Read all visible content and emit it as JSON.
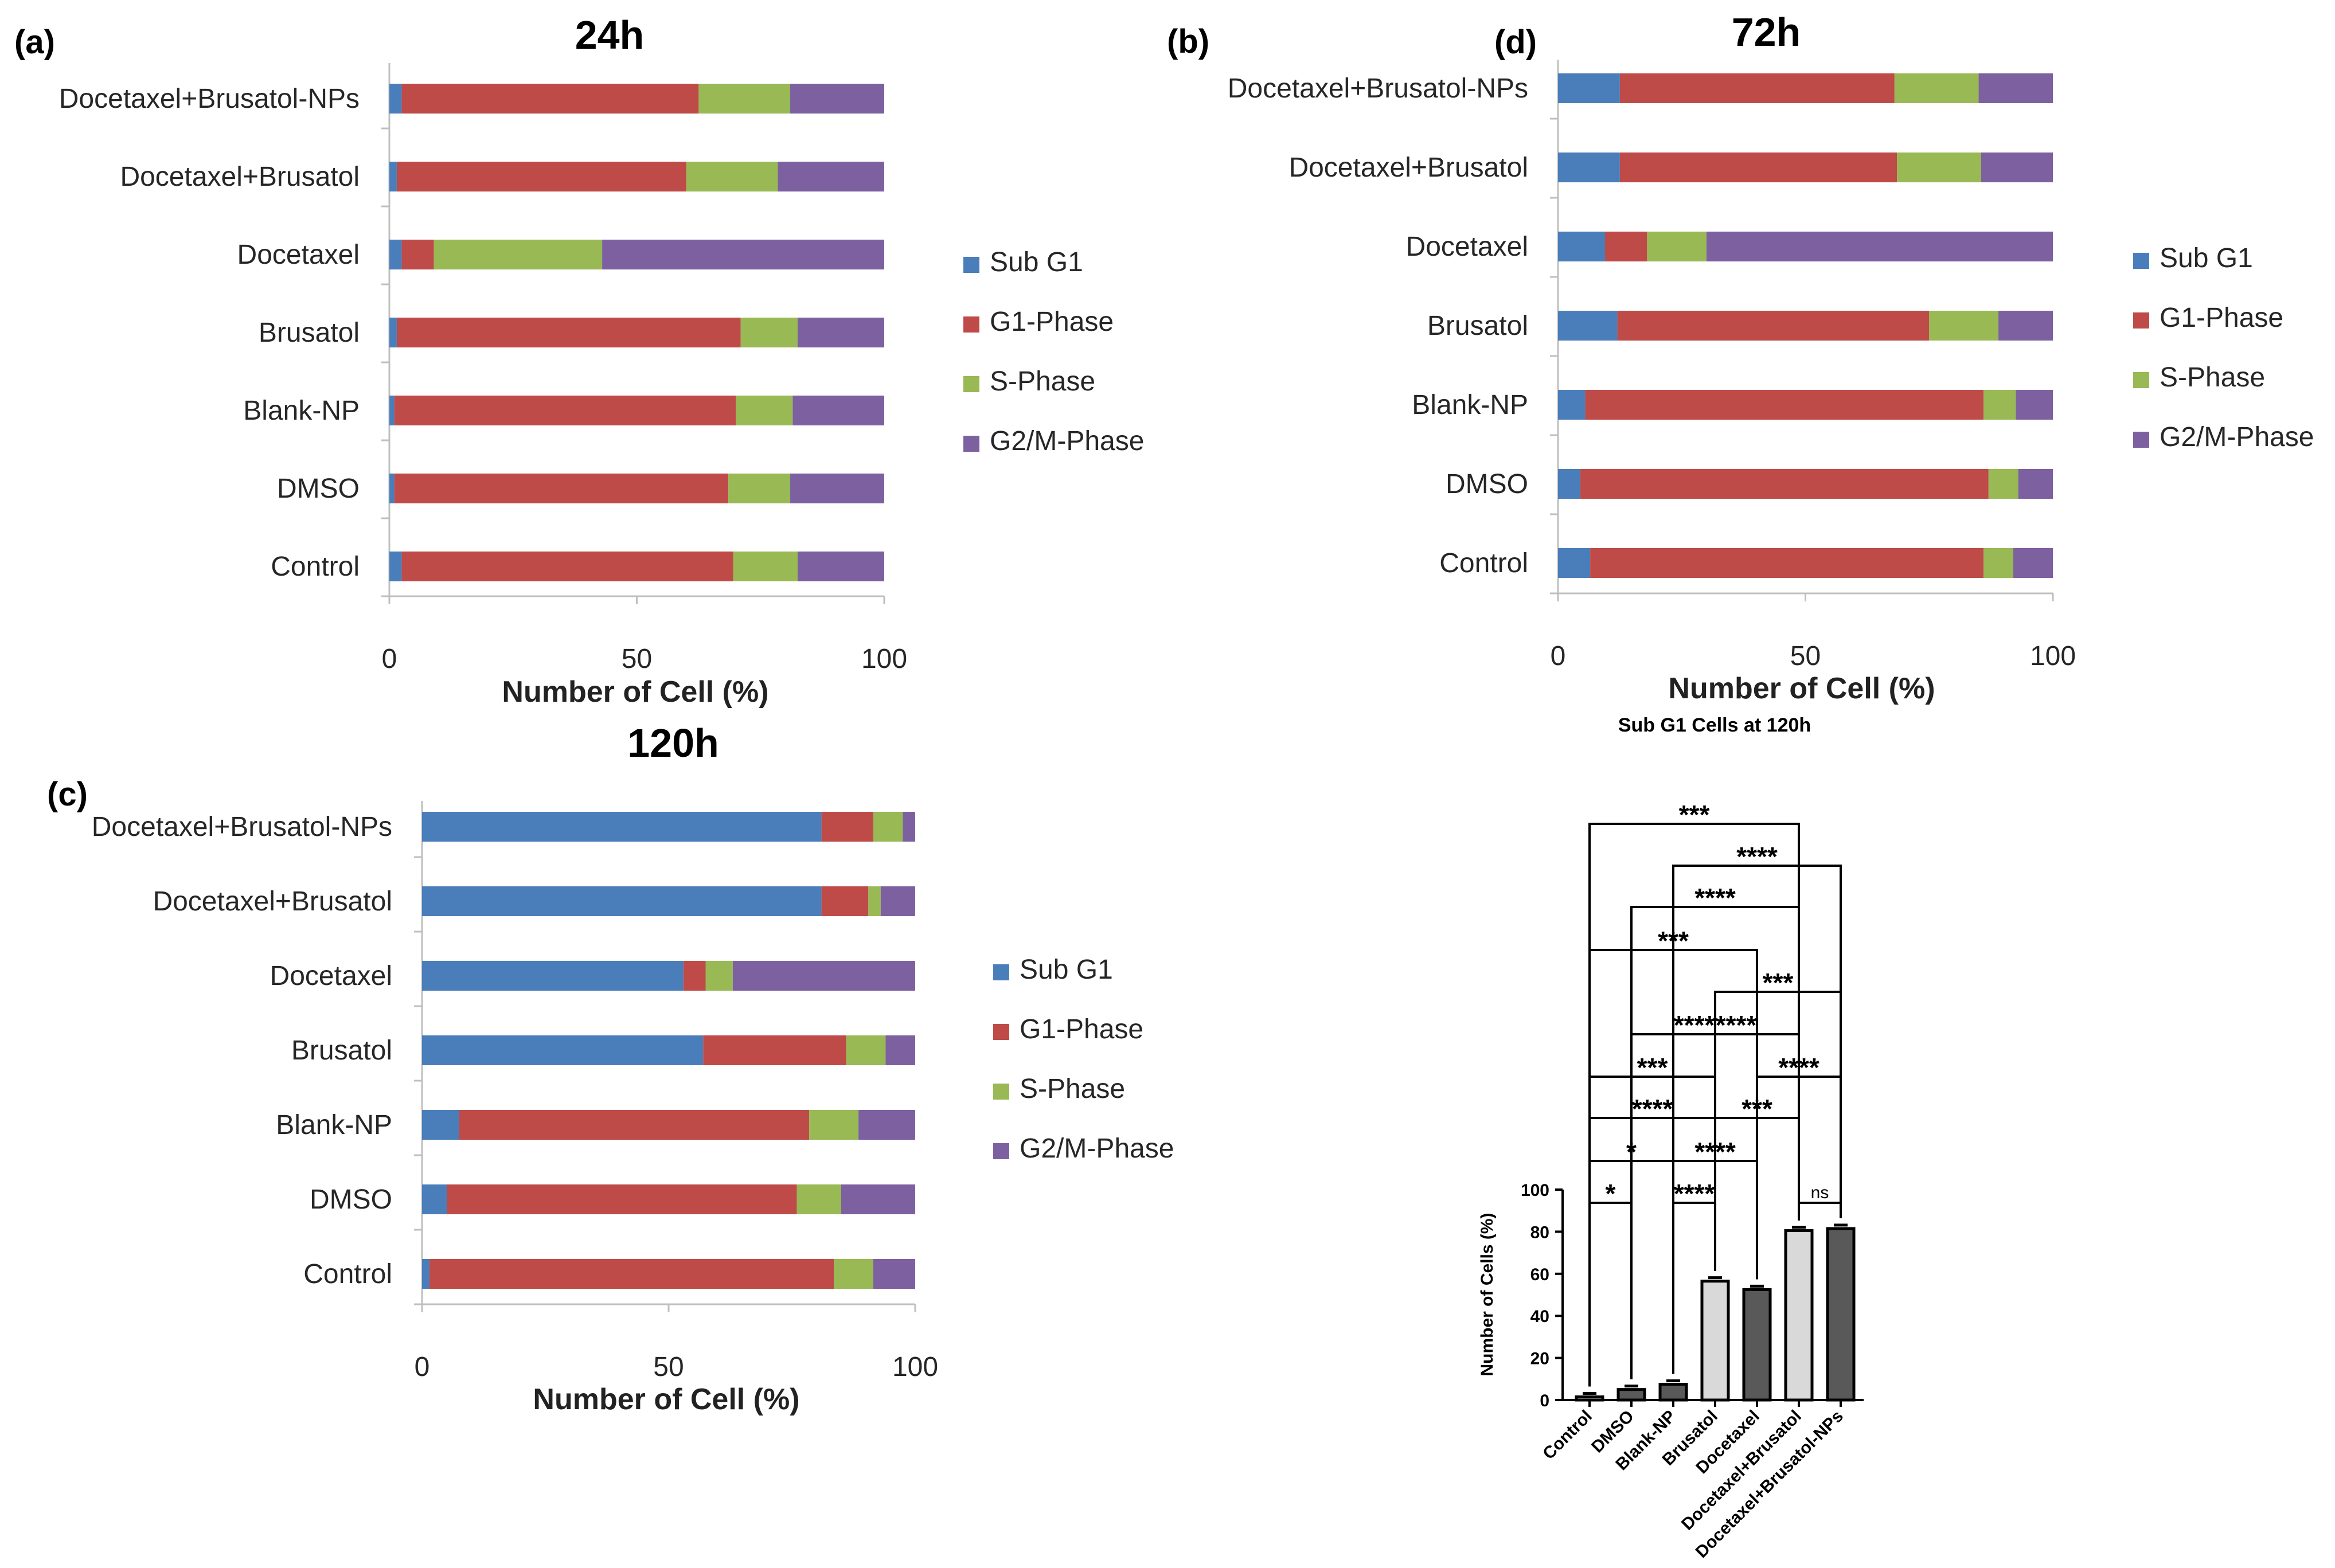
{
  "colors": {
    "sub_g1": "#4a7ebb",
    "g1": "#be4b48",
    "s": "#98b954",
    "g2m": "#7d60a0",
    "bar_light": "#d9d9d9",
    "bar_dark": "#595959"
  },
  "chart_data": [
    {
      "panel": "(a)",
      "type": "bar",
      "orientation": "horizontal",
      "stacked": true,
      "title": "24h",
      "xlabel": "Number of Cell (%)",
      "ylabel": "",
      "xlim": [
        0,
        100
      ],
      "xticks": [
        "0",
        "50",
        "100"
      ],
      "legend_position": "right",
      "categories": [
        "Control",
        "DMSO",
        "Blank-NP",
        "Brusatol",
        "Docetaxel",
        "Docetaxel+Brusatol",
        "Docetaxel+Brusatol-NPs"
      ],
      "series": [
        {
          "name": "Sub G1",
          "values": [
            2.5,
            1,
            1,
            1.5,
            2.5,
            1.5,
            2.5
          ]
        },
        {
          "name": "G1-Phase",
          "values": [
            67,
            67.5,
            69,
            69.5,
            6.5,
            58.5,
            60
          ]
        },
        {
          "name": "S-Phase",
          "values": [
            13,
            12.5,
            11.5,
            11.5,
            34,
            18.5,
            18.5
          ]
        },
        {
          "name": "G2/M-Phase",
          "values": [
            17.5,
            19,
            18.5,
            17.5,
            57,
            21.5,
            19
          ]
        }
      ]
    },
    {
      "panel": "(b)",
      "type": "bar",
      "orientation": "horizontal",
      "stacked": true,
      "title": "72h",
      "xlabel": "Number of Cell (%)",
      "ylabel": "",
      "xlim": [
        0,
        100
      ],
      "xticks": [
        "0",
        "50",
        "100"
      ],
      "legend_position": "right",
      "categories": [
        "Control",
        "DMSO",
        "Blank-NP",
        "Brusatol",
        "Docetaxel",
        "Docetaxel+Brusatol",
        "Docetaxel+Brusatol-NPs"
      ],
      "series": [
        {
          "name": "Sub G1",
          "values": [
            6.5,
            4.5,
            5.5,
            12,
            9.5,
            12.5,
            12.5
          ]
        },
        {
          "name": "G1-Phase",
          "values": [
            79.5,
            82.5,
            80.5,
            63,
            8.5,
            56,
            55.5
          ]
        },
        {
          "name": "S-Phase",
          "values": [
            6,
            6,
            6.5,
            14,
            12,
            17,
            17
          ]
        },
        {
          "name": "G2/M-Phase",
          "values": [
            8,
            7,
            7.5,
            11,
            70,
            14.5,
            15
          ]
        }
      ]
    },
    {
      "panel": "(c)",
      "type": "bar",
      "orientation": "horizontal",
      "stacked": true,
      "title": "120h",
      "xlabel": "Number of Cell (%)",
      "ylabel": "",
      "xlim": [
        0,
        100
      ],
      "xticks": [
        "0",
        "50",
        "100"
      ],
      "legend_position": "right",
      "categories": [
        "Control",
        "DMSO",
        "Blank-NP",
        "Brusatol",
        "Docetaxel",
        "Docetaxel+Brusatol",
        "Docetaxel+Brusatol-NPs"
      ],
      "series": [
        {
          "name": "Sub G1",
          "values": [
            1.5,
            5,
            7.5,
            57,
            53,
            81,
            81
          ]
        },
        {
          "name": "G1-Phase",
          "values": [
            82,
            71,
            71,
            29,
            4.5,
            9.5,
            10.5
          ]
        },
        {
          "name": "S-Phase",
          "values": [
            8,
            9,
            10,
            8,
            5.5,
            2.5,
            6
          ]
        },
        {
          "name": "G2/M-Phase",
          "values": [
            8.5,
            15,
            11.5,
            6,
            37,
            7,
            2.5
          ]
        }
      ]
    },
    {
      "panel": "(d)",
      "type": "bar",
      "orientation": "vertical",
      "title": "Sub G1 Cells at 120h",
      "xlabel": "",
      "ylabel": "Number of Cells (%)",
      "ylim": [
        0,
        100
      ],
      "yticks": [
        "0",
        "20",
        "40",
        "60",
        "80",
        "100"
      ],
      "categories": [
        "Control",
        "DMSO",
        "Blank-NP",
        "Brusatol",
        "Docetaxel",
        "Docetaxel+Brusatol",
        "Docetaxel+Brusatol-NPs"
      ],
      "values": [
        1.5,
        5,
        7.5,
        56.5,
        52.5,
        80.5,
        81.5
      ],
      "bar_shades": [
        "light",
        "dark",
        "dark",
        "light",
        "dark",
        "light",
        "dark"
      ],
      "comparisons": [
        {
          "a": 0,
          "b": 1,
          "label": "*"
        },
        {
          "a": 2,
          "b": 3,
          "label": "****"
        },
        {
          "a": 5,
          "b": 6,
          "label": "ns"
        },
        {
          "a": 0,
          "b": 2,
          "label": "*"
        },
        {
          "a": 2,
          "b": 4,
          "label": "****"
        },
        {
          "a": 0,
          "b": 3,
          "label": "****"
        },
        {
          "a": 3,
          "b": 5,
          "label": "***"
        },
        {
          "a": 0,
          "b": 3,
          "label": "***"
        },
        {
          "a": 4,
          "b": 6,
          "label": "****"
        },
        {
          "a": 1,
          "b": 4,
          "label": "****"
        },
        {
          "a": 2,
          "b": 5,
          "label": "****"
        },
        {
          "a": 3,
          "b": 6,
          "label": "***"
        },
        {
          "a": 0,
          "b": 4,
          "label": "***"
        },
        {
          "a": 1,
          "b": 5,
          "label": "****"
        },
        {
          "a": 2,
          "b": 6,
          "label": "****"
        },
        {
          "a": 0,
          "b": 5,
          "label": "***"
        }
      ]
    }
  ]
}
